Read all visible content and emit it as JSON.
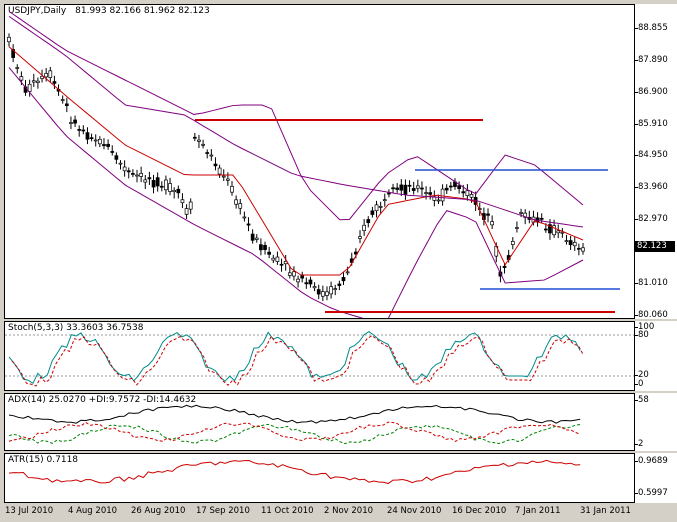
{
  "main": {
    "symbol": "USDJPY,Daily",
    "ohlc": "81.993 82.166 81.962 82.123",
    "price_levels": [
      "88.855",
      "87.890",
      "86.900",
      "85.910",
      "84.950",
      "83.960",
      "82.970",
      "81.010",
      "80.060"
    ],
    "current_price": "82.123"
  },
  "stoch": {
    "title": "Stoch(5,3,3) 33.3603 36.7538",
    "levels": [
      "100",
      "80",
      "20",
      "0"
    ]
  },
  "adx": {
    "title": "ADX(14) 25.0270 +DI:9.7572 -DI:14.4632",
    "levels": [
      "58",
      "2"
    ]
  },
  "atr": {
    "title": "ATR(15) 0.7118",
    "levels": [
      "0.9689",
      "0.5997"
    ]
  },
  "x_axis": [
    "13 Jul 2010",
    "4 Aug 2010",
    "26 Aug 2010",
    "17 Sep 2010",
    "11 Oct 2010",
    "2 Nov 2010",
    "24 Nov 2010",
    "16 Dec 2010",
    "7 Jan 2011",
    "31 Jan 2011"
  ],
  "colors": {
    "candle": "#000000",
    "ma_fast": "#cc0000",
    "bands": "#800080",
    "support_resistance": "#cc0000",
    "range_line": "#1f4fd6",
    "stoch_main": "#008b8b",
    "stoch_signal": "#cc0000",
    "adx": "#000000",
    "plus_di": "#008000",
    "minus_di": "#cc0000",
    "atr": "#cc0000"
  }
}
